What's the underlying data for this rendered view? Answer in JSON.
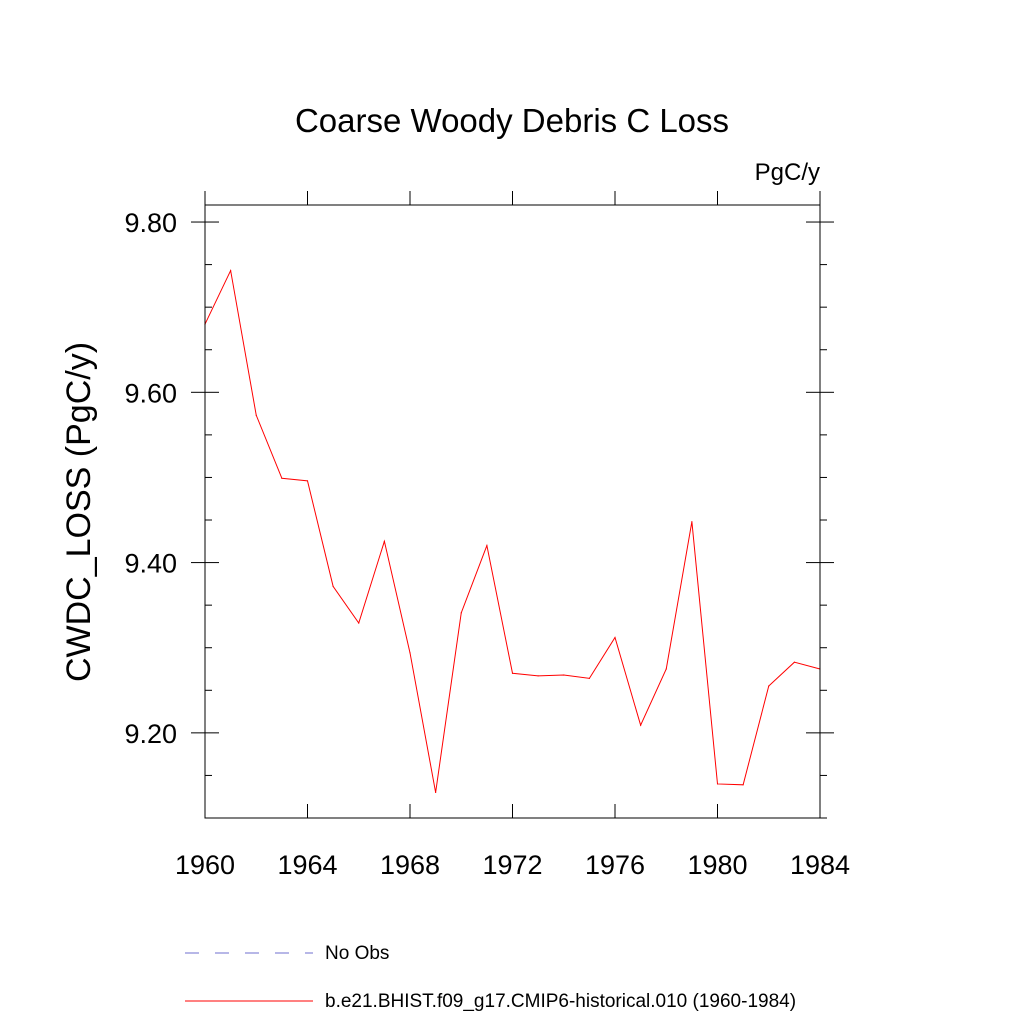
{
  "chart_data": {
    "type": "line",
    "title": "Coarse Woody Debris C Loss",
    "units_label": "PgC/y",
    "xlabel": "",
    "ylabel": "CWDC_LOSS  (PgC/y)",
    "xlim": [
      1960,
      1984
    ],
    "ylim": [
      9.1,
      9.82
    ],
    "x_ticks": [
      1960,
      1964,
      1968,
      1972,
      1976,
      1980,
      1984
    ],
    "x_tick_labels": [
      "1960",
      "1964",
      "1968",
      "1972",
      "1976",
      "1980",
      "1984"
    ],
    "y_ticks": [
      9.2,
      9.4,
      9.6,
      9.8
    ],
    "y_tick_labels": [
      "9.20",
      "9.40",
      "9.60",
      "9.80"
    ],
    "series": [
      {
        "name": "b.e21.BHIST.f09_g17.CMIP6-historical.010 (1960-1984)",
        "color": "#ff0000",
        "x": [
          1960,
          1961,
          1962,
          1963,
          1964,
          1965,
          1966,
          1967,
          1968,
          1969,
          1970,
          1971,
          1972,
          1973,
          1974,
          1975,
          1976,
          1977,
          1978,
          1979,
          1980,
          1981,
          1982,
          1983,
          1984
        ],
        "values": [
          9.68,
          9.743,
          9.573,
          9.499,
          9.496,
          9.372,
          9.329,
          9.425,
          9.294,
          9.13,
          9.341,
          9.42,
          9.27,
          9.267,
          9.268,
          9.264,
          9.312,
          9.209,
          9.275,
          9.448,
          9.14,
          9.139,
          9.255,
          9.283,
          9.275
        ]
      }
    ],
    "legend": [
      {
        "label": "No Obs",
        "style": "dashed",
        "color": "#6f6fcf"
      },
      {
        "label": "b.e21.BHIST.f09_g17.CMIP6-historical.010 (1960-1984)",
        "style": "solid",
        "color": "#ff0000"
      }
    ],
    "legend_placement": "bottom"
  }
}
